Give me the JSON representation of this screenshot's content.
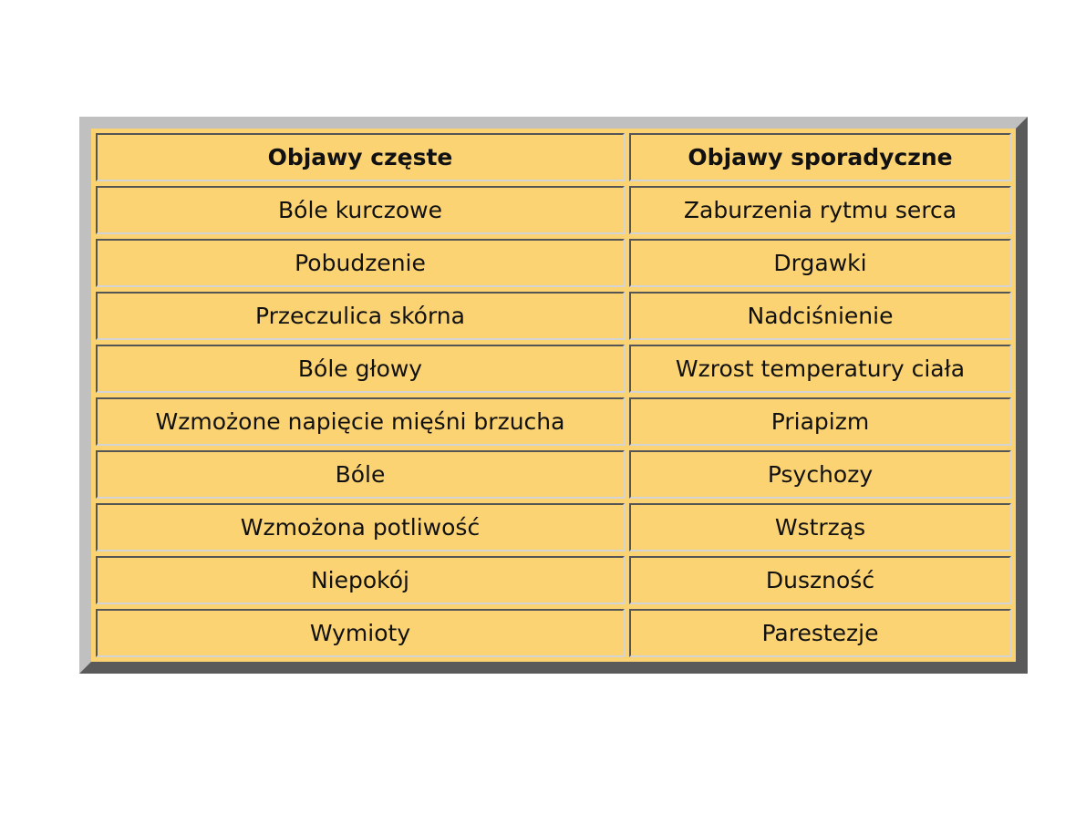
{
  "table": {
    "headers": [
      "Objawy częste",
      "Objawy sporadyczne"
    ],
    "rows": [
      [
        "Bóle kurczowe",
        "Zaburzenia rytmu serca"
      ],
      [
        "Pobudzenie",
        "Drgawki"
      ],
      [
        "Przeczulica skórna",
        "Nadciśnienie"
      ],
      [
        "Bóle głowy",
        "Wzrost temperatury ciała"
      ],
      [
        "Wzmożone napięcie mięśni brzucha",
        "Priapizm"
      ],
      [
        "Bóle",
        "Psychozy"
      ],
      [
        "Wzmożona potliwość",
        "Wstrząs"
      ],
      [
        "Niepokój",
        "Duszność"
      ],
      [
        "Wymioty",
        "Parestezje"
      ]
    ]
  },
  "colors": {
    "cell_background": "#fcd373",
    "border_light": "#c0c0c0",
    "border_dark": "#5a5a5a"
  }
}
